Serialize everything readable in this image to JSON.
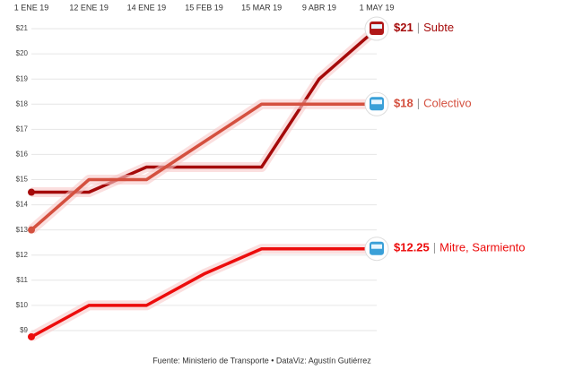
{
  "chart_data": {
    "type": "line",
    "categories": [
      "1 ENE 19",
      "12 ENE 19",
      "14 ENE 19",
      "15 FEB 19",
      "15 MAR 19",
      "9 ABR 19",
      "1 MAY 19"
    ],
    "series": [
      {
        "name": "Subte",
        "color": "#a50a0a",
        "values": [
          14.5,
          14.5,
          15.5,
          15.5,
          15.5,
          19,
          21
        ],
        "value_labels": [
          null,
          null,
          null,
          null,
          null,
          null,
          "$21"
        ]
      },
      {
        "name": "Colectivo",
        "color": "#d4503f",
        "values": [
          13,
          15,
          15,
          16.5,
          18,
          18,
          18
        ],
        "value_labels": [
          null,
          null,
          null,
          null,
          null,
          null,
          "$18"
        ]
      },
      {
        "name": "Mitre, Sarmiento",
        "color": "#ec0c0c",
        "values": [
          8.75,
          10,
          10,
          11.25,
          12.25,
          12.25,
          12.25
        ],
        "value_labels": [
          null,
          null,
          null,
          null,
          null,
          null,
          "$12.25"
        ]
      }
    ],
    "separator": "|",
    "ylim": [
      8.5,
      21.5
    ],
    "yticks": [
      {
        "value": 9,
        "label": "$9"
      },
      {
        "value": 10,
        "label": "$10"
      },
      {
        "value": 11,
        "label": "$11"
      },
      {
        "value": 12,
        "label": "$12"
      },
      {
        "value": 13,
        "label": "$13"
      },
      {
        "value": 14,
        "label": "$14"
      },
      {
        "value": 15,
        "label": "$15"
      },
      {
        "value": 16,
        "label": "$16"
      },
      {
        "value": 17,
        "label": "$17"
      },
      {
        "value": 18,
        "label": "$18"
      },
      {
        "value": 19,
        "label": "$19"
      },
      {
        "value": 20,
        "label": "$20"
      },
      {
        "value": 21,
        "label": "$21"
      }
    ],
    "grid": true,
    "source": "Fuente: Ministerio de Transporte  • DataViz: Agustín Gutiérrez"
  }
}
